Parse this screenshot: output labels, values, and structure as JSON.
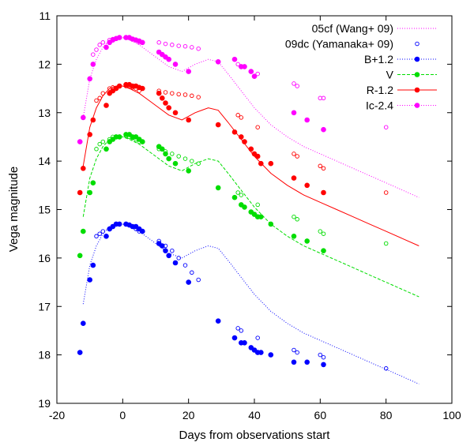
{
  "chart_data": {
    "type": "scatter",
    "title": "",
    "xlabel": "Days from observations start",
    "ylabel": "Vega magnitude",
    "xlim": [
      -20,
      100
    ],
    "ylim": [
      11,
      19
    ],
    "y_inverted": true,
    "xticks": [
      -20,
      0,
      20,
      40,
      60,
      80,
      100
    ],
    "yticks": [
      11,
      12,
      13,
      14,
      15,
      16,
      17,
      18,
      19
    ],
    "legend_position": "top-right",
    "series": [
      {
        "name": "05cf (Wang+ 09)",
        "kind": "template-lines",
        "color": "#ff00ff",
        "dash": "1,2",
        "x": [
          -12,
          -10,
          -8,
          -6,
          -4,
          -2,
          0,
          2,
          5,
          8,
          11,
          14,
          18,
          22,
          26,
          29,
          32,
          36,
          40,
          45,
          50,
          55,
          60,
          65,
          70,
          75,
          80,
          85,
          90
        ],
        "y_bands": [
          {
            "offset": 0.0,
            "color": "#ff00ff",
            "dash": "1,2"
          },
          {
            "offset": 1.0,
            "color": "#ff0000",
            "dash": ""
          },
          {
            "offset": 2.05,
            "color": "#00dd00",
            "dash": "4,2"
          },
          {
            "offset": 3.85,
            "color": "#0000ff",
            "dash": "1,2"
          }
        ],
        "y": [
          13.1,
          12.3,
          11.9,
          11.65,
          11.5,
          11.45,
          11.45,
          11.5,
          11.6,
          11.75,
          11.9,
          12.05,
          12.15,
          12.0,
          11.9,
          11.95,
          12.2,
          12.55,
          12.9,
          13.25,
          13.5,
          13.7,
          13.85,
          14.0,
          14.15,
          14.3,
          14.45,
          14.6,
          14.75
        ]
      },
      {
        "name": "09dc (Yamanaka+ 09)",
        "kind": "open-points",
        "color": "#0000ff",
        "groups": [
          {
            "color": "#ff00ff",
            "x": [
              -9,
              -8,
              -7,
              -6,
              -4,
              -3,
              1,
              2,
              3,
              4,
              5,
              11,
              13,
              15,
              17,
              19,
              21,
              23,
              35,
              36,
              41,
              52,
              53,
              60,
              61,
              80
            ],
            "y": [
              11.8,
              11.7,
              11.6,
              11.55,
              11.5,
              11.48,
              11.45,
              11.45,
              11.48,
              11.5,
              11.55,
              11.55,
              11.58,
              11.6,
              11.62,
              11.63,
              11.65,
              11.68,
              12.0,
              12.05,
              12.2,
              12.4,
              12.45,
              12.7,
              12.7,
              13.3
            ]
          },
          {
            "color": "#ff0000",
            "x": [
              -8,
              -7,
              -6,
              -4,
              -3,
              1,
              2,
              3,
              4,
              5,
              11,
              13,
              15,
              17,
              19,
              21,
              23,
              35,
              36,
              41,
              52,
              53,
              60,
              61,
              80
            ],
            "y": [
              12.75,
              12.7,
              12.6,
              12.5,
              12.48,
              12.45,
              12.45,
              12.48,
              12.5,
              12.55,
              12.55,
              12.58,
              12.6,
              12.62,
              12.63,
              12.65,
              12.68,
              13.05,
              13.1,
              13.3,
              13.85,
              13.9,
              14.1,
              14.15,
              14.65
            ]
          },
          {
            "color": "#00dd00",
            "x": [
              -8,
              -7,
              -6,
              -4,
              -3,
              1,
              2,
              3,
              4,
              5,
              11,
              13,
              15,
              17,
              19,
              21,
              23,
              35,
              36,
              41,
              52,
              53,
              60,
              61,
              80
            ],
            "y": [
              13.75,
              13.65,
              13.6,
              13.55,
              13.5,
              13.48,
              13.5,
              13.52,
              13.55,
              13.6,
              13.75,
              13.8,
              13.85,
              13.9,
              13.95,
              14.0,
              14.05,
              14.65,
              14.7,
              14.9,
              15.15,
              15.2,
              15.45,
              15.5,
              15.7
            ]
          },
          {
            "color": "#0000ff",
            "x": [
              -8,
              -7,
              -6,
              -4,
              -3,
              1,
              2,
              3,
              4,
              5,
              11,
              13,
              15,
              17,
              19,
              21,
              23,
              35,
              36,
              41,
              52,
              53,
              60,
              61,
              80
            ],
            "y": [
              15.55,
              15.5,
              15.45,
              15.4,
              15.35,
              15.3,
              15.32,
              15.35,
              15.4,
              15.45,
              15.65,
              15.75,
              15.85,
              16.0,
              16.15,
              16.3,
              16.45,
              17.45,
              17.5,
              17.65,
              17.9,
              17.95,
              18.0,
              18.05,
              18.28
            ]
          }
        ]
      },
      {
        "name": "B+1.2",
        "kind": "filled-points",
        "color": "#0000ff",
        "dash": "1,2",
        "x": [
          -13,
          -12,
          -10,
          -9,
          -5,
          -4,
          -3,
          -2,
          -1,
          1,
          2,
          3,
          4,
          5,
          6,
          11,
          12,
          13,
          14,
          16,
          20,
          29,
          34,
          36,
          37,
          39,
          40,
          41,
          42,
          45,
          52,
          56,
          61
        ],
        "y": [
          17.95,
          17.35,
          16.45,
          16.15,
          15.55,
          15.4,
          15.35,
          15.3,
          15.3,
          15.3,
          15.32,
          15.35,
          15.35,
          15.4,
          15.45,
          15.7,
          15.75,
          15.85,
          15.95,
          16.1,
          16.5,
          17.3,
          17.65,
          17.75,
          17.75,
          17.85,
          17.9,
          17.95,
          17.95,
          18.0,
          18.15,
          18.15,
          18.2
        ]
      },
      {
        "name": "V",
        "kind": "filled-points",
        "color": "#00dd00",
        "dash": "4,2",
        "x": [
          -13,
          -12,
          -10,
          -9,
          -5,
          -4,
          -3,
          -2,
          -1,
          1,
          2,
          3,
          4,
          5,
          6,
          11,
          12,
          13,
          14,
          16,
          20,
          29,
          34,
          36,
          37,
          39,
          40,
          41,
          42,
          45,
          52,
          56,
          61
        ],
        "y": [
          15.95,
          15.45,
          14.65,
          14.45,
          13.75,
          13.6,
          13.55,
          13.5,
          13.5,
          13.45,
          13.45,
          13.5,
          13.5,
          13.55,
          13.6,
          13.7,
          13.75,
          13.85,
          13.95,
          14.05,
          14.2,
          14.55,
          14.75,
          14.9,
          14.95,
          15.05,
          15.1,
          15.15,
          15.15,
          15.3,
          15.55,
          15.65,
          15.85
        ]
      },
      {
        "name": "R-1.2",
        "kind": "filled-points",
        "color": "#ff0000",
        "dash": "",
        "x": [
          -13,
          -12,
          -10,
          -9,
          -5,
          -4,
          -3,
          -2,
          -1,
          1,
          2,
          3,
          4,
          5,
          6,
          11,
          12,
          13,
          14,
          16,
          20,
          29,
          34,
          36,
          37,
          39,
          40,
          41,
          42,
          45,
          52,
          56,
          61
        ],
        "y": [
          14.65,
          14.15,
          13.45,
          13.15,
          12.85,
          12.6,
          12.55,
          12.5,
          12.45,
          12.42,
          12.42,
          12.45,
          12.45,
          12.48,
          12.5,
          12.6,
          12.7,
          12.8,
          12.9,
          13.0,
          13.15,
          13.25,
          13.4,
          13.5,
          13.6,
          13.75,
          13.85,
          13.9,
          14.05,
          14.05,
          14.35,
          14.5,
          14.65
        ]
      },
      {
        "name": "Ic-2.4",
        "kind": "filled-points",
        "color": "#ff00ff",
        "dash": "1,2",
        "x": [
          -13,
          -12,
          -10,
          -9,
          -5,
          -4,
          -3,
          -2,
          -1,
          1,
          2,
          3,
          4,
          5,
          6,
          11,
          12,
          13,
          14,
          16,
          20,
          29,
          34,
          36,
          37,
          39,
          40,
          52,
          56,
          61
        ],
        "y": [
          13.6,
          13.1,
          12.3,
          12.0,
          11.65,
          11.55,
          11.5,
          11.47,
          11.45,
          11.45,
          11.45,
          11.48,
          11.5,
          11.52,
          11.55,
          11.75,
          11.8,
          11.85,
          11.9,
          12.0,
          12.15,
          11.95,
          11.9,
          12.05,
          12.05,
          12.15,
          12.25,
          13.0,
          13.15,
          13.35
        ]
      }
    ]
  }
}
